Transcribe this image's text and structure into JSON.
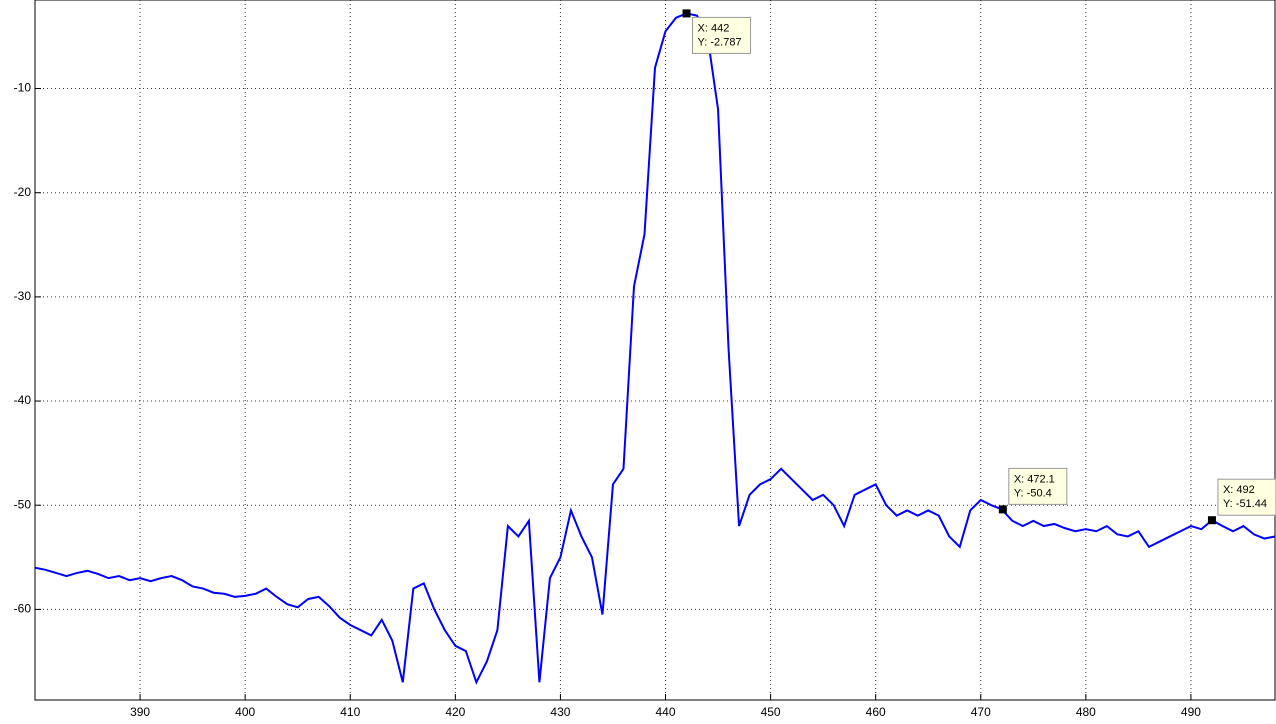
{
  "chart_data": {
    "type": "line",
    "x": [
      380,
      381,
      382,
      383,
      384,
      385,
      386,
      387,
      388,
      389,
      390,
      391,
      392,
      393,
      394,
      395,
      396,
      397,
      398,
      399,
      400,
      401,
      402,
      403,
      404,
      405,
      406,
      407,
      408,
      409,
      410,
      411,
      412,
      413,
      414,
      415,
      416,
      417,
      418,
      419,
      420,
      421,
      422,
      423,
      424,
      425,
      426,
      427,
      428,
      429,
      430,
      431,
      432,
      433,
      434,
      435,
      436,
      437,
      438,
      439,
      440,
      441,
      442,
      443,
      444,
      445,
      446,
      447,
      448,
      449,
      450,
      451,
      452,
      453,
      454,
      455,
      456,
      457,
      458,
      459,
      460,
      461,
      462,
      463,
      464,
      465,
      466,
      467,
      468,
      469,
      470,
      471,
      472,
      473,
      474,
      475,
      476,
      477,
      478,
      479,
      480,
      481,
      482,
      483,
      484,
      485,
      486,
      487,
      488,
      489,
      490,
      491,
      492,
      493,
      494,
      495,
      496,
      497,
      498
    ],
    "series": [
      {
        "color": "#0000ff",
        "values": [
          -56,
          -56.2,
          -56.5,
          -56.8,
          -56.5,
          -56.3,
          -56.6,
          -57,
          -56.8,
          -57.2,
          -57,
          -57.3,
          -57,
          -56.8,
          -57.2,
          -57.8,
          -58,
          -58.4,
          -58.5,
          -58.8,
          -58.7,
          -58.5,
          -58,
          -58.8,
          -59.5,
          -59.8,
          -59,
          -58.8,
          -59.7,
          -60.8,
          -61.5,
          -62,
          -62.5,
          -61,
          -63,
          -67,
          -58,
          -57.5,
          -60,
          -62,
          -63.5,
          -64,
          -67,
          -65,
          -62,
          -52,
          -53,
          -51.5,
          -67,
          -57,
          -55,
          -50.5,
          -53,
          -55,
          -60.5,
          -48,
          -46.5,
          -29,
          -24,
          -8,
          -4.5,
          -3.2,
          -2.787,
          -3,
          -5,
          -12,
          -35,
          -52,
          -49,
          -48,
          -47.5,
          -46.5,
          -47.5,
          -48.5,
          -49.5,
          -49,
          -50,
          -52,
          -49,
          -48.5,
          -48,
          -50,
          -51,
          -50.5,
          -51,
          -50.5,
          -51,
          -53,
          -54,
          -50.5,
          -49.5,
          -50,
          -50.4,
          -51.5,
          -52,
          -51.5,
          -52,
          -51.8,
          -52.2,
          -52.5,
          -52.3,
          -52.5,
          -52,
          -52.8,
          -53,
          -52.5,
          -54,
          -53.5,
          -53,
          -52.5,
          -52,
          -52.3,
          -51.44,
          -52,
          -52.5,
          -52,
          -52.8,
          -53.2,
          -53
        ]
      }
    ],
    "xlim": [
      380,
      498
    ],
    "ylim": [
      -68.7,
      -1.5
    ],
    "xticks": [
      390,
      400,
      410,
      420,
      430,
      440,
      450,
      460,
      470,
      480,
      490
    ],
    "yticks": [
      -60,
      -50,
      -40,
      -30,
      -20,
      -10
    ],
    "grid": true,
    "annotations": [
      {
        "x": 442,
        "y": -2.787,
        "text": [
          "X: 442",
          "Y: -2.787"
        ]
      },
      {
        "x": 472.1,
        "y": -50.4,
        "text": [
          "X: 472.1",
          "Y: -50.4"
        ]
      },
      {
        "x": 492,
        "y": -51.44,
        "text": [
          "X: 492",
          "Y: -51.44"
        ]
      }
    ]
  }
}
